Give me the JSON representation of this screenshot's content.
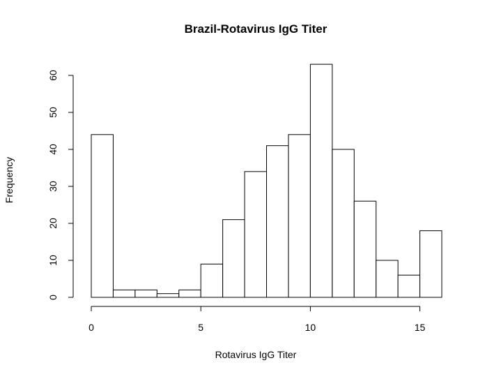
{
  "chart_data": {
    "type": "bar",
    "subtype": "histogram",
    "title": "Brazil-Rotavirus IgG Titer",
    "xlabel": "Rotavirus IgG Titer",
    "ylabel": "Frequency",
    "bins": [
      {
        "x0": 0,
        "x1": 1,
        "count": 44
      },
      {
        "x0": 1,
        "x1": 2,
        "count": 2
      },
      {
        "x0": 2,
        "x1": 3,
        "count": 2
      },
      {
        "x0": 3,
        "x1": 4,
        "count": 1
      },
      {
        "x0": 4,
        "x1": 5,
        "count": 2
      },
      {
        "x0": 5,
        "x1": 6,
        "count": 9
      },
      {
        "x0": 6,
        "x1": 7,
        "count": 21
      },
      {
        "x0": 7,
        "x1": 8,
        "count": 34
      },
      {
        "x0": 8,
        "x1": 9,
        "count": 41
      },
      {
        "x0": 9,
        "x1": 10,
        "count": 44
      },
      {
        "x0": 10,
        "x1": 11,
        "count": 63
      },
      {
        "x0": 11,
        "x1": 12,
        "count": 40
      },
      {
        "x0": 12,
        "x1": 13,
        "count": 26
      },
      {
        "x0": 13,
        "x1": 14,
        "count": 10
      },
      {
        "x0": 14,
        "x1": 15,
        "count": 6
      },
      {
        "x0": 15,
        "x1": 16,
        "count": 18
      }
    ],
    "xlim": [
      0,
      16
    ],
    "ylim": [
      0,
      63
    ],
    "x_ticks": [
      0,
      5,
      10,
      15
    ],
    "x_tick_labels": [
      "0",
      "5",
      "10",
      "15"
    ],
    "y_ticks": [
      0,
      10,
      20,
      30,
      40,
      50,
      60
    ],
    "y_tick_labels": [
      "0",
      "10",
      "20",
      "30",
      "40",
      "50",
      "60"
    ],
    "grid": false,
    "legend": "none",
    "colors": {
      "bar_fill": "#ffffff",
      "bar_stroke": "#000000"
    }
  }
}
